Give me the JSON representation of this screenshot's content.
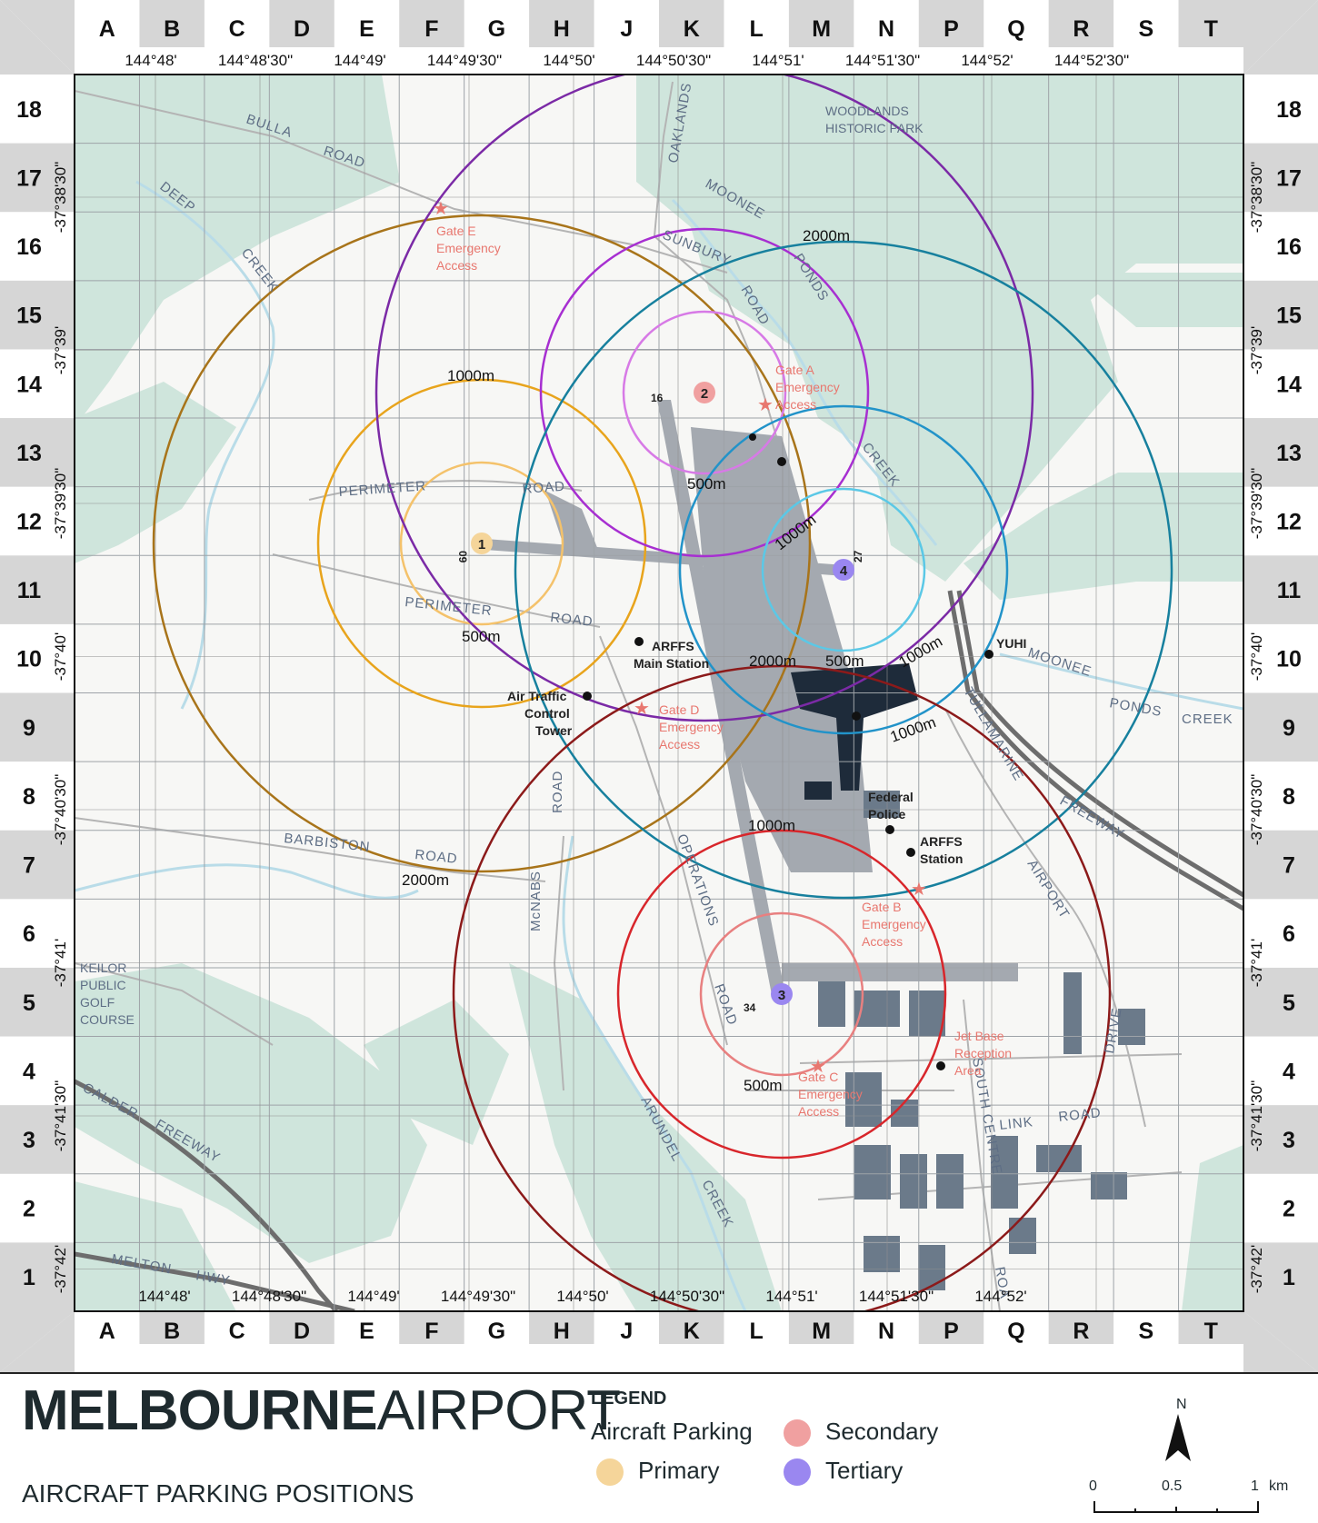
{
  "map": {
    "columns": [
      "A",
      "B",
      "C",
      "D",
      "E",
      "F",
      "G",
      "H",
      "J",
      "K",
      "L",
      "M",
      "N",
      "P",
      "Q",
      "R",
      "S",
      "T"
    ],
    "rows": [
      "18",
      "17",
      "16",
      "15",
      "14",
      "13",
      "12",
      "11",
      "10",
      "9",
      "8",
      "7",
      "6",
      "5",
      "4",
      "3",
      "2",
      "1"
    ],
    "longitudes": [
      "144°48'",
      "144°48'30\"",
      "144°49'",
      "144°49'30\"",
      "144°50'",
      "144°50'30\"",
      "144°51'",
      "144°51'30\"",
      "144°52'",
      "144°52'30\""
    ],
    "latitudes": [
      "-37°38'30\"",
      "-37°39'",
      "-37°39'30\"",
      "-37°40'",
      "-37°40'30\"",
      "-37°41'",
      "-37°41'30\"",
      "-37°42'"
    ],
    "road_labels": {
      "bulla_road": "BULLA",
      "bulla_road2": "ROAD",
      "deep_creek": "DEEP",
      "creek_w": "CREEK",
      "oaklands_road": "OAKLANDS",
      "moonee": "MOONEE",
      "sunbury_road": "SUNBURY",
      "road_s": "ROAD",
      "ponds": "PONDS",
      "creek_n": "CREEK",
      "perimeter_road_n": "PERIMETER",
      "road_n": "ROAD",
      "perimeter_road_s": "PERIMETER",
      "road_ps": "ROAD",
      "moonee_e": "MOONEE",
      "ponds_e": "PONDS",
      "creek_e": "CREEK",
      "tullamarine": "TULLAMARINE",
      "freeway": "FREEWAY",
      "barbiston": "BARBISTON",
      "barbiston_road": "ROAD",
      "mcnabs": "McNABS",
      "road_mcnabs": "ROAD",
      "operations": "OPERATIONS",
      "operations_road": "ROAD",
      "airport": "AIRPORT",
      "drive": "DRIVE",
      "link": "LINK",
      "link_road": "ROAD",
      "south_centre": "SOUTH CENTRE",
      "roa": "ROA",
      "arundel": "ARUNDEL",
      "arundel_creek": "CREEK",
      "calder": "CALDER",
      "calder_freeway": "FREEWAY",
      "melton": "MELTON",
      "hwy": "HWY"
    },
    "place_labels": {
      "woodlands_1": "WOODLANDS",
      "woodlands_2": "HISTORIC PARK",
      "keilor_1": "KEILOR",
      "keilor_2": "PUBLIC",
      "keilor_3": "GOLF",
      "keilor_4": "COURSE"
    },
    "gates": [
      {
        "lines": [
          "Gate E",
          "Emergency",
          "Access"
        ]
      },
      {
        "lines": [
          "Gate A",
          "Emergency",
          "Access"
        ]
      },
      {
        "lines": [
          "Gate D",
          "Emergency",
          "Access"
        ]
      },
      {
        "lines": [
          "Gate B",
          "Emergency",
          "Access"
        ]
      },
      {
        "lines": [
          "Gate C",
          "Emergency",
          "Access"
        ]
      },
      {
        "lines": [
          "Jet Base",
          "Reception",
          "Area"
        ]
      }
    ],
    "facilities": {
      "arffs_main_1": "ARFFS",
      "arffs_main_2": "Main Station",
      "atc_1": "Air Traffic",
      "atc_2": "Control",
      "atc_3": "Tower",
      "federal_1": "Federal",
      "federal_2": "Police",
      "arffs_1": "ARFFS",
      "arffs_2": "Station",
      "yuhi": "YUHI"
    },
    "runway_labels": {
      "r16": "16",
      "r34": "34",
      "r09": "09",
      "r27": "27"
    },
    "ring_labels": {
      "p1_1000": "1000m",
      "p1_500": "500m",
      "p1_2000": "2000m",
      "p2_500": "500m",
      "p2_2000": "2000m",
      "p4_1000": "1000m",
      "p4_500": "500m",
      "p4_2000": "2000m",
      "p4_1000b": "1000m",
      "p4_1000c": "1000m",
      "p3_1000": "1000m",
      "p3_500": "500m"
    },
    "positions": [
      {
        "label": "1",
        "category": "Primary"
      },
      {
        "label": "2",
        "category": "Secondary"
      },
      {
        "label": "3",
        "category": "Tertiary"
      },
      {
        "label": "4",
        "category": "Tertiary"
      }
    ],
    "colors": {
      "primary": "#f5d59a",
      "secondary": "#f0a0a0",
      "tertiary": "#9a87f0",
      "vegetation": "#cfe5dc",
      "ring_p1_500": "#f4c26b",
      "ring_p1_1000": "#e8a41c",
      "ring_p1_2000": "#a8741a",
      "ring_p2_500": "#d77ae6",
      "ring_p2_1000": "#a72fd1",
      "ring_p2_2000": "#7b2aa6",
      "ring_p4_500": "#5bc8e6",
      "ring_p4_1000": "#2293c9",
      "ring_p4_2000": "#17809e",
      "ring_p3_500": "#e88080",
      "ring_p3_1000": "#d8262b",
      "ring_p3_2000": "#8c1a1a"
    }
  },
  "footer": {
    "brand_bold": "MELBOURNE",
    "brand_light": "AIRPORT",
    "subtitle": "AIRCRAFT PARKING POSITIONS",
    "legend_title": "LEGEND",
    "legend_group": "Aircraft Parking",
    "legend_items": {
      "primary": "Primary",
      "secondary": "Secondary",
      "tertiary": "Tertiary"
    },
    "north": "N",
    "scale": {
      "zero": "0",
      "half": "0.5",
      "one": "1",
      "unit": "km"
    }
  }
}
